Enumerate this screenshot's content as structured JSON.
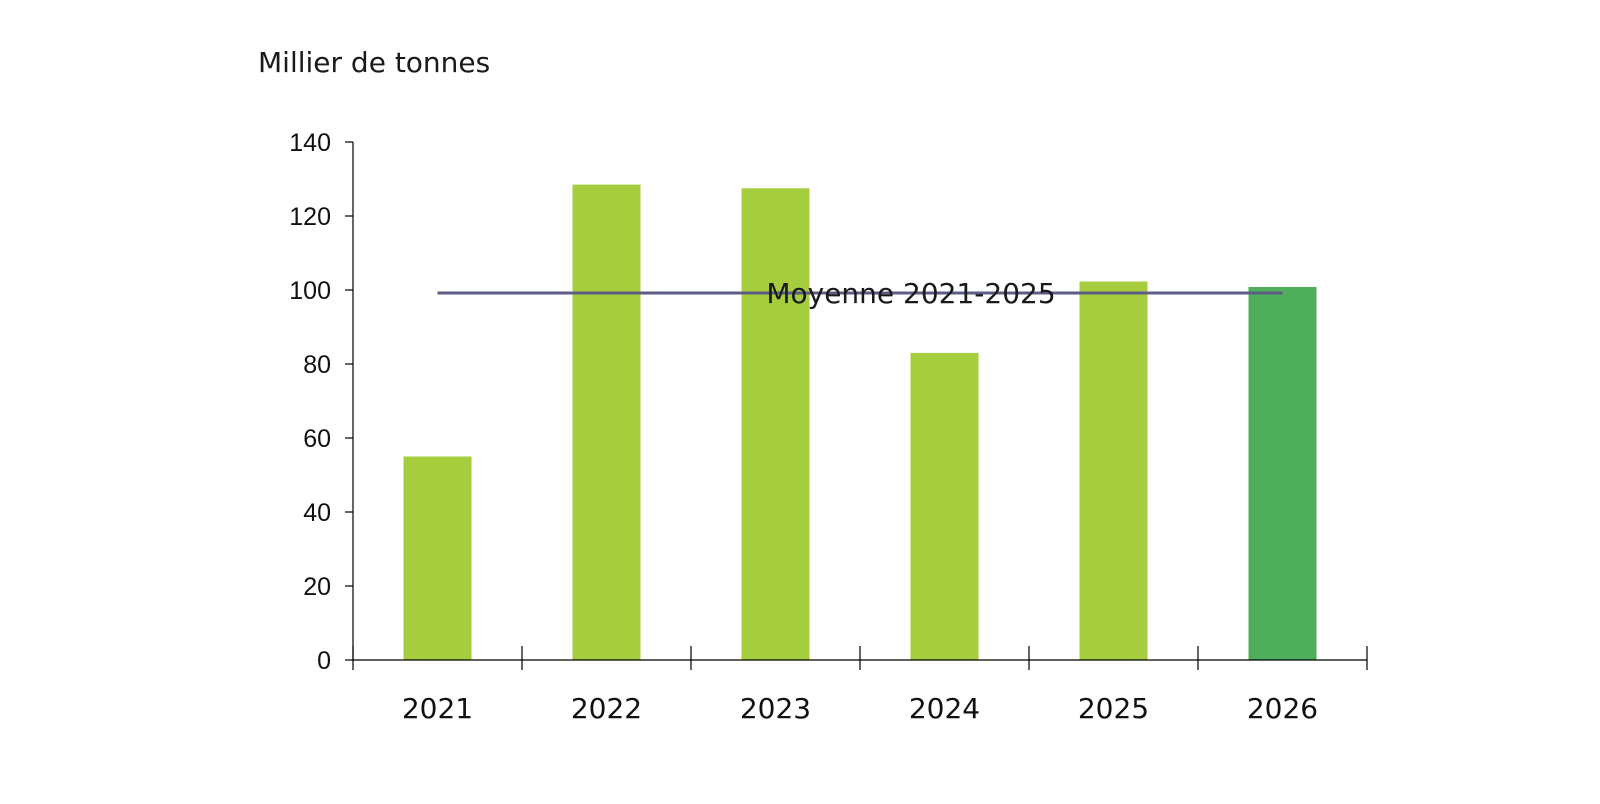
{
  "chart_data": {
    "type": "bar",
    "unit_label": "Millier de tonnes",
    "categories": [
      "2021",
      "2022",
      "2023",
      "2024",
      "2025",
      "2026"
    ],
    "values": [
      55,
      128.5,
      127.5,
      83,
      102.3,
      100.8
    ],
    "bar_colors": [
      "#a6cd3e",
      "#a6cd3e",
      "#a6cd3e",
      "#a6cd3e",
      "#a6cd3e",
      "#4fae5c"
    ],
    "ylim": [
      0,
      140
    ],
    "yticks": [
      0,
      20,
      40,
      60,
      80,
      100,
      120,
      140
    ],
    "grid": false,
    "reference_line": {
      "label": "Moyenne 2021-2025",
      "value": 99.2,
      "color": "#5c5c84"
    }
  }
}
